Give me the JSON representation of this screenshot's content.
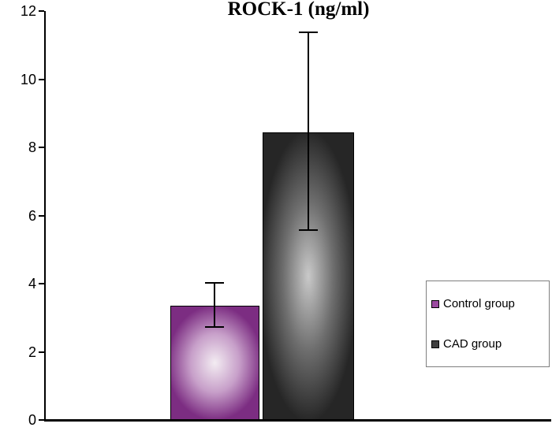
{
  "chart_data": {
    "type": "bar",
    "title": "ROCK-1 (ng/ml)",
    "xlabel": "",
    "ylabel": "",
    "ylim": [
      0,
      12
    ],
    "yticks": [
      0,
      2,
      4,
      6,
      8,
      10,
      12
    ],
    "grid": false,
    "legend_position": "right",
    "categories": [
      "Control group",
      "CAD group"
    ],
    "series": [
      {
        "name": "Control group",
        "value": 3.35,
        "error_low": 2.7,
        "error_high": 4.05,
        "swatch_color": "#9b4ba0",
        "fill_inner": "#f3ecf2",
        "fill_mid": "#c79fc9",
        "fill_outer": "#7c2d82"
      },
      {
        "name": "CAD group",
        "value": 8.45,
        "error_low": 5.55,
        "error_high": 11.4,
        "swatch_color": "#3f3f3f",
        "fill_inner": "#c9c9c9",
        "fill_mid": "#6e6e6e",
        "fill_outer": "#262626"
      }
    ]
  }
}
